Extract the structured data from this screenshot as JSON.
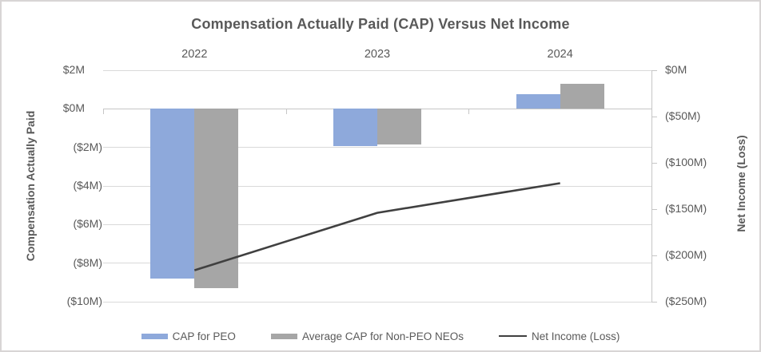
{
  "title": {
    "text": "Compensation Actually Paid (CAP) Versus Net Income",
    "color": "#595959"
  },
  "colors": {
    "text": "#595959",
    "grid": "#d9d9d9",
    "axis_line": "#c6c6c6",
    "bar_blue": "#8EA9DB",
    "bar_gray": "#A6A6A6",
    "line_dark": "#404040",
    "background": "#ffffff"
  },
  "chart_data": {
    "type": "bar+line combo",
    "title": "Compensation Actually Paid (CAP) Versus Net Income",
    "categories": [
      "2022",
      "2023",
      "2024"
    ],
    "series": [
      {
        "name": "CAP for PEO",
        "type": "bar",
        "axis": "left",
        "color": "#8EA9DB",
        "values_millions_usd": [
          -8.8,
          -1.95,
          0.75
        ]
      },
      {
        "name": "Average CAP for Non-PEO NEOs",
        "type": "bar",
        "axis": "left",
        "color": "#A6A6A6",
        "values_millions_usd": [
          -9.3,
          -1.85,
          1.3
        ]
      },
      {
        "name": "Net Income (Loss)",
        "type": "line",
        "axis": "right",
        "color": "#404040",
        "values_millions_usd": [
          -216,
          -154,
          -122
        ]
      }
    ],
    "left_axis": {
      "title": "Compensation Actually Paid",
      "tick_labels": [
        "$2M",
        "$0M",
        "($2M)",
        "($4M)",
        "($6M)",
        "($8M)",
        "($10M)"
      ],
      "tick_values_musd": [
        2,
        0,
        -2,
        -4,
        -6,
        -8,
        -10
      ],
      "max": 2,
      "min": -10
    },
    "right_axis": {
      "title": "Net Income (Loss)",
      "tick_labels": [
        "$0M",
        "($50M)",
        "($100M)",
        "($150M)",
        "($200M)",
        "($250M)"
      ],
      "tick_values_musd": [
        0,
        -50,
        -100,
        -150,
        -200,
        -250
      ],
      "max": 0,
      "min": -250
    },
    "legend": {
      "position": "bottom",
      "entries": [
        "CAP for PEO",
        "Average CAP for Non-PEO NEOs",
        "Net Income (Loss)"
      ]
    },
    "grid": "horizontal",
    "category_labels_position": "top"
  }
}
